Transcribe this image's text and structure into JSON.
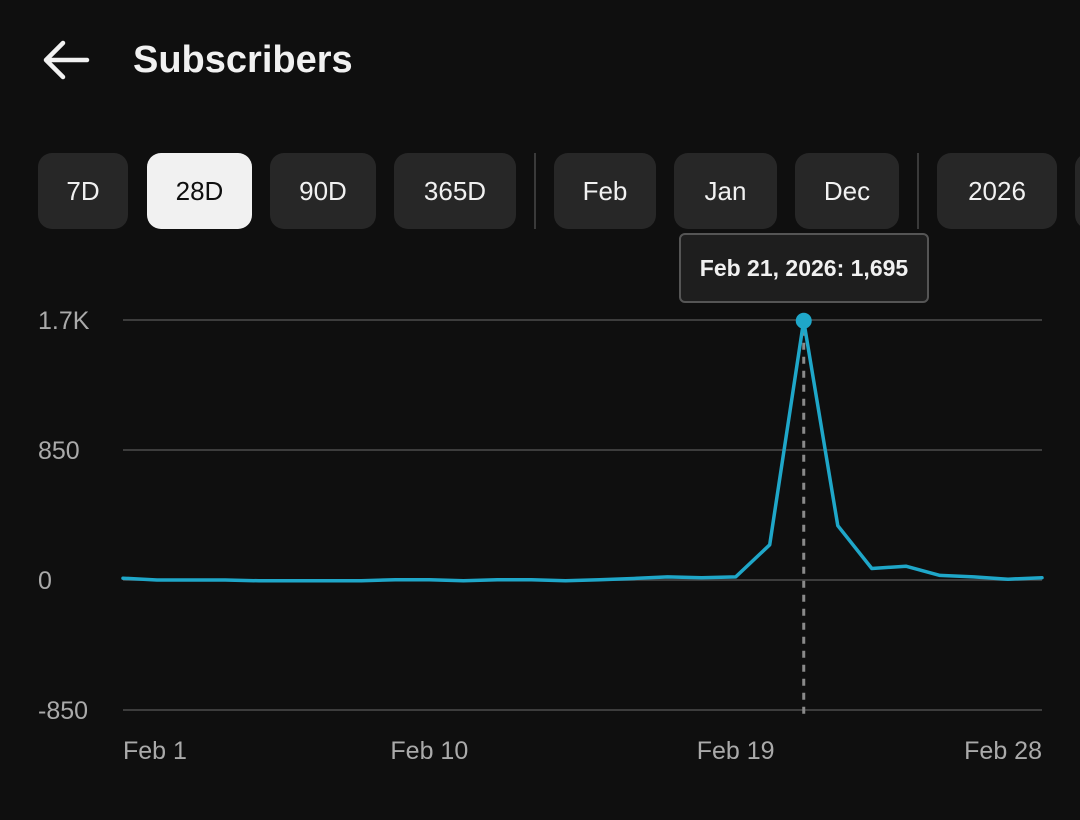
{
  "header": {
    "title": "Subscribers",
    "back_icon": "arrow-left-icon"
  },
  "filters": {
    "ranges": [
      "7D",
      "28D",
      "90D",
      "365D"
    ],
    "months": [
      "Feb",
      "Jan",
      "Dec"
    ],
    "years": [
      "2026"
    ],
    "selected": "28D"
  },
  "tooltip": {
    "text": "Feb 21, 2026: 1,695"
  },
  "colors": {
    "line": "#1fa7c9",
    "background": "#0f0f0f",
    "chip": "#272727",
    "chip_selected": "#f1f1f1"
  },
  "chart_data": {
    "type": "line",
    "title": "",
    "xlabel": "",
    "ylabel": "",
    "x": [
      "Feb 1",
      "Feb 2",
      "Feb 3",
      "Feb 4",
      "Feb 5",
      "Feb 6",
      "Feb 7",
      "Feb 8",
      "Feb 9",
      "Feb 10",
      "Feb 11",
      "Feb 12",
      "Feb 13",
      "Feb 14",
      "Feb 15",
      "Feb 16",
      "Feb 17",
      "Feb 18",
      "Feb 19",
      "Feb 20",
      "Feb 21",
      "Feb 22",
      "Feb 23",
      "Feb 24",
      "Feb 25",
      "Feb 26",
      "Feb 27",
      "Feb 28"
    ],
    "series": [
      {
        "values": [
          12,
          0,
          0,
          0,
          -5,
          -5,
          -5,
          -5,
          2,
          2,
          -5,
          2,
          2,
          -5,
          2,
          10,
          20,
          15,
          20,
          230,
          1695,
          355,
          75,
          90,
          30,
          20,
          5,
          15
        ]
      }
    ],
    "x_tick_labels": [
      "Feb 1",
      "Feb 10",
      "Feb 19",
      "Feb 28"
    ],
    "y_tick_labels": [
      "-850",
      "0",
      "850",
      "1.7K"
    ],
    "y_ticks": [
      -850,
      0,
      850,
      1700
    ],
    "ylim": [
      -850,
      1700
    ],
    "grid": true,
    "highlight": {
      "x": "Feb 21",
      "value": 1695
    }
  }
}
